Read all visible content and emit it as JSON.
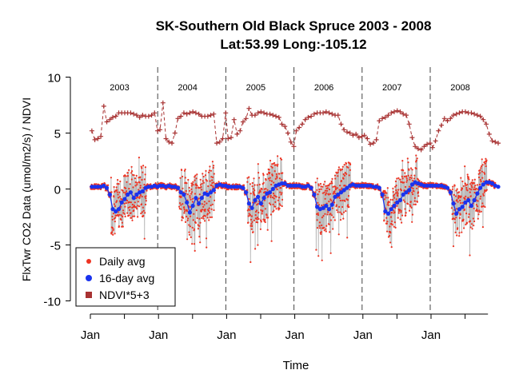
{
  "chart_data": {
    "type": "line",
    "title": "SK-Southern Old Black Spruce 2003 - 2008",
    "subtitle": "Lat:53.99    Long:-105.12",
    "xlabel": "Time",
    "ylabel": "FlxTwr CO2 Data (umol/m2/s) / NDVI",
    "ylim": [
      -10,
      10
    ],
    "yticks": [
      -10,
      -5,
      0,
      5,
      10
    ],
    "x_tick_labels": [
      "Jan",
      "Jan",
      "Jan",
      "Jan",
      "Jan",
      "Jan"
    ],
    "year_labels": [
      "2003",
      "2004",
      "2005",
      "2006",
      "2007",
      "2008"
    ],
    "legend": {
      "position": "bottom-left",
      "entries": [
        "Daily avg",
        "16-day avg",
        "NDVI*5+3"
      ]
    },
    "colors": {
      "daily": "#ee3322",
      "avg16": "#1a33ee",
      "ndvi": "#a83232",
      "grey_line": "#bbbbbb"
    },
    "series": [
      {
        "name": "16-day avg",
        "x_days_per_point": 16,
        "values": [
          0.2,
          0.2,
          0.2,
          0.2,
          0.3,
          0.1,
          -0.5,
          -1.8,
          -2.0,
          -1.8,
          -1.2,
          -0.9,
          -0.5,
          -0.3,
          -0.8,
          -0.5,
          -0.3,
          -0.2,
          0.1,
          0.2,
          0.2,
          0.3,
          0.2,
          0.3,
          0.3,
          0.2,
          0.3,
          0.2,
          0.2,
          0.1,
          -0.3,
          -0.5,
          -1.2,
          -2.1,
          -1.5,
          -0.8,
          -1.3,
          -0.8,
          -0.4,
          -0.5,
          -0.3,
          -0.1,
          0.3,
          0.4,
          0.3,
          0.3,
          0.2,
          0.2,
          0.2,
          0.2,
          0.2,
          0.1,
          -0.3,
          -1.3,
          -1.7,
          -1.0,
          -0.7,
          -1.3,
          -0.8,
          -0.4,
          -0.3,
          0.0,
          0.3,
          0.4,
          0.5,
          0.5,
          0.3,
          0.3,
          0.3,
          0.3,
          0.3,
          0.2,
          0.2,
          0.3,
          0.1,
          -0.5,
          -1.6,
          -1.8,
          -1.7,
          -1.5,
          -1.8,
          -1.4,
          -0.7,
          -0.5,
          -0.3,
          -0.1,
          0.1,
          0.3,
          0.4,
          0.3,
          0.3,
          0.3,
          0.3,
          0.3,
          0.3,
          0.2,
          0.2,
          0.1,
          -0.5,
          -2.0,
          -2.2,
          -1.8,
          -1.5,
          -1.2,
          -1.0,
          -0.5,
          -0.3,
          -0.1,
          0.4,
          0.6,
          0.5,
          0.4,
          0.3,
          0.3,
          0.3,
          0.3,
          0.3,
          0.3,
          0.3,
          0.2,
          0.1,
          -0.3,
          -1.3,
          -2.2,
          -1.8,
          -1.6,
          -1.2,
          -1.0,
          -1.5,
          -1.0,
          -0.4,
          0.1,
          0.4,
          0.6,
          0.6,
          0.5,
          0.3,
          0.2
        ]
      },
      {
        "name": "NDVI*5+3",
        "x_days_per_point": 16,
        "values": [
          5.2,
          4.4,
          4.5,
          4.7,
          7.4,
          6.0,
          6.2,
          6.4,
          6.5,
          6.8,
          6.8,
          6.8,
          6.8,
          6.8,
          6.7,
          6.6,
          6.4,
          6.6,
          6.5,
          6.5,
          6.6,
          6.8,
          5.2,
          5.3,
          7.7,
          4.5,
          4.2,
          4.1,
          5.0,
          6.3,
          6.5,
          6.8,
          6.7,
          6.8,
          6.9,
          6.8,
          6.7,
          6.5,
          6.5,
          6.5,
          6.6,
          6.7,
          4.1,
          4.2,
          4.5,
          6.8,
          4.5,
          4.6,
          6.2,
          4.9,
          5.2,
          6.0,
          6.3,
          7.2,
          6.6,
          6.6,
          6.8,
          6.9,
          6.8,
          6.7,
          6.7,
          6.6,
          6.5,
          6.4,
          5.8,
          5.6,
          5.0,
          4.2,
          3.8,
          5.2,
          5.5,
          5.8,
          6.2,
          6.4,
          6.5,
          6.7,
          6.8,
          6.8,
          6.8,
          6.9,
          6.8,
          6.7,
          6.6,
          6.6,
          5.8,
          5.3,
          5.1,
          5.0,
          4.8,
          4.9,
          4.6,
          4.7,
          4.8,
          4.5,
          4.0,
          4.1,
          4.4,
          6.1,
          6.3,
          6.4,
          6.6,
          6.8,
          6.9,
          7.0,
          6.9,
          6.7,
          6.6,
          5.8,
          4.6,
          3.8,
          3.6,
          3.5,
          3.8,
          4.0,
          4.1,
          3.7,
          4.3,
          5.2,
          5.7,
          6.3,
          6.1,
          6.3,
          6.6,
          6.7,
          6.8,
          6.9,
          6.9,
          6.8,
          6.8,
          6.7,
          6.6,
          6.5,
          6.2,
          5.8,
          4.9,
          4.3,
          4.2,
          4.1
        ]
      },
      {
        "name": "Daily avg",
        "note_source": "daily values oscillate about the 16-day average",
        "seed": 7
      }
    ]
  }
}
